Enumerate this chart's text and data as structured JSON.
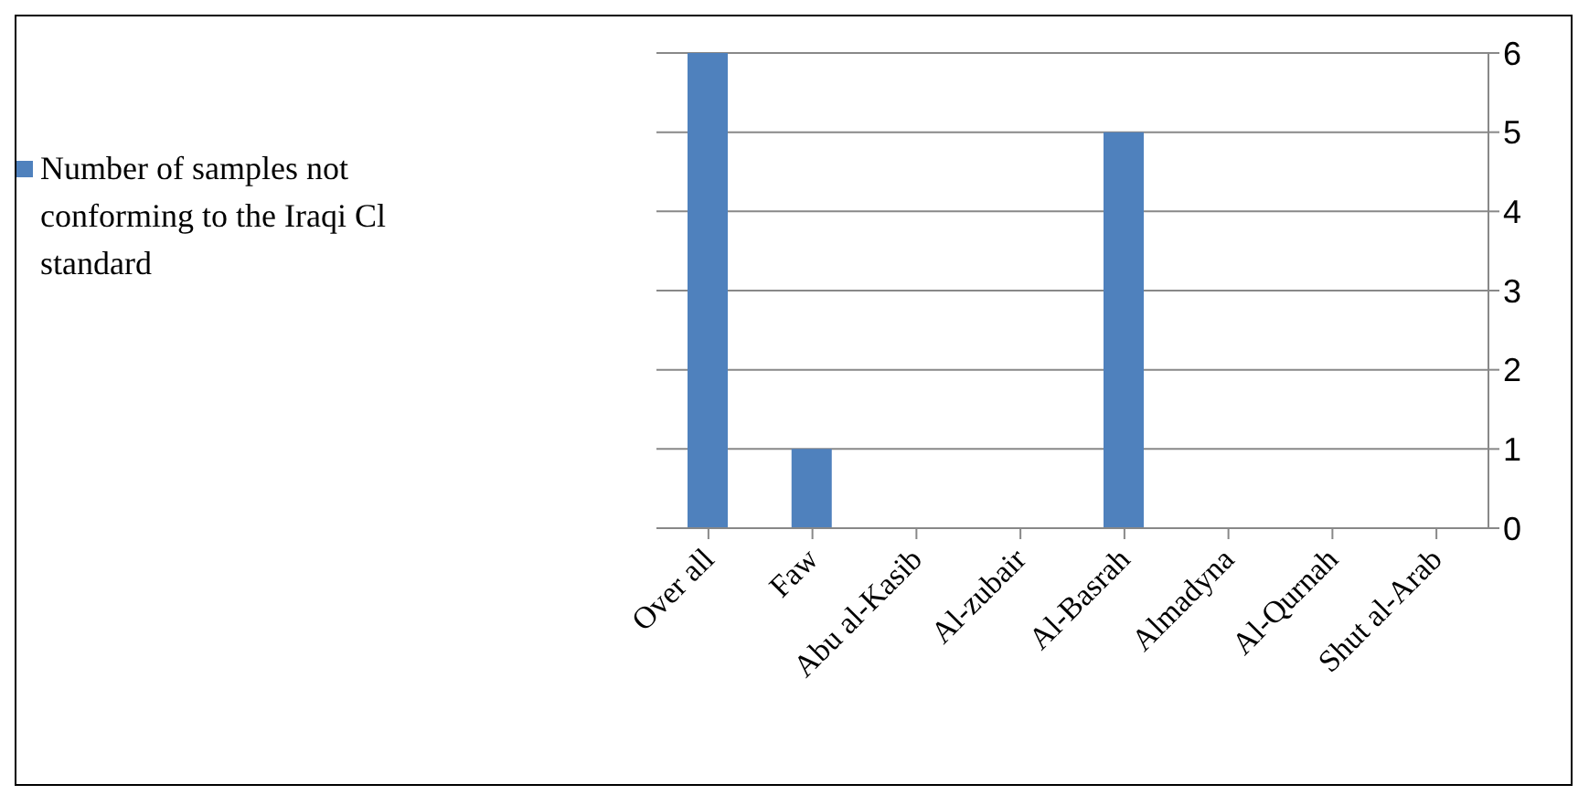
{
  "chart_data": {
    "type": "bar",
    "categories": [
      "Over all",
      "Faw",
      "Abu al-Kasib",
      "Al-zubair",
      "Al-Basrah",
      "Almadyna",
      "Al-Qurnah",
      "Shut al-Arab"
    ],
    "series": [
      {
        "name": "Number of samples not conforming to the Iraqi Cl standard",
        "color": "#4f81bd",
        "values": [
          6,
          1,
          0,
          0,
          5,
          0,
          0,
          0
        ]
      }
    ],
    "ylim": [
      0,
      6
    ],
    "yticks": [
      0,
      1,
      2,
      3,
      4,
      5,
      6
    ],
    "grid": "y",
    "legend": "left"
  }
}
